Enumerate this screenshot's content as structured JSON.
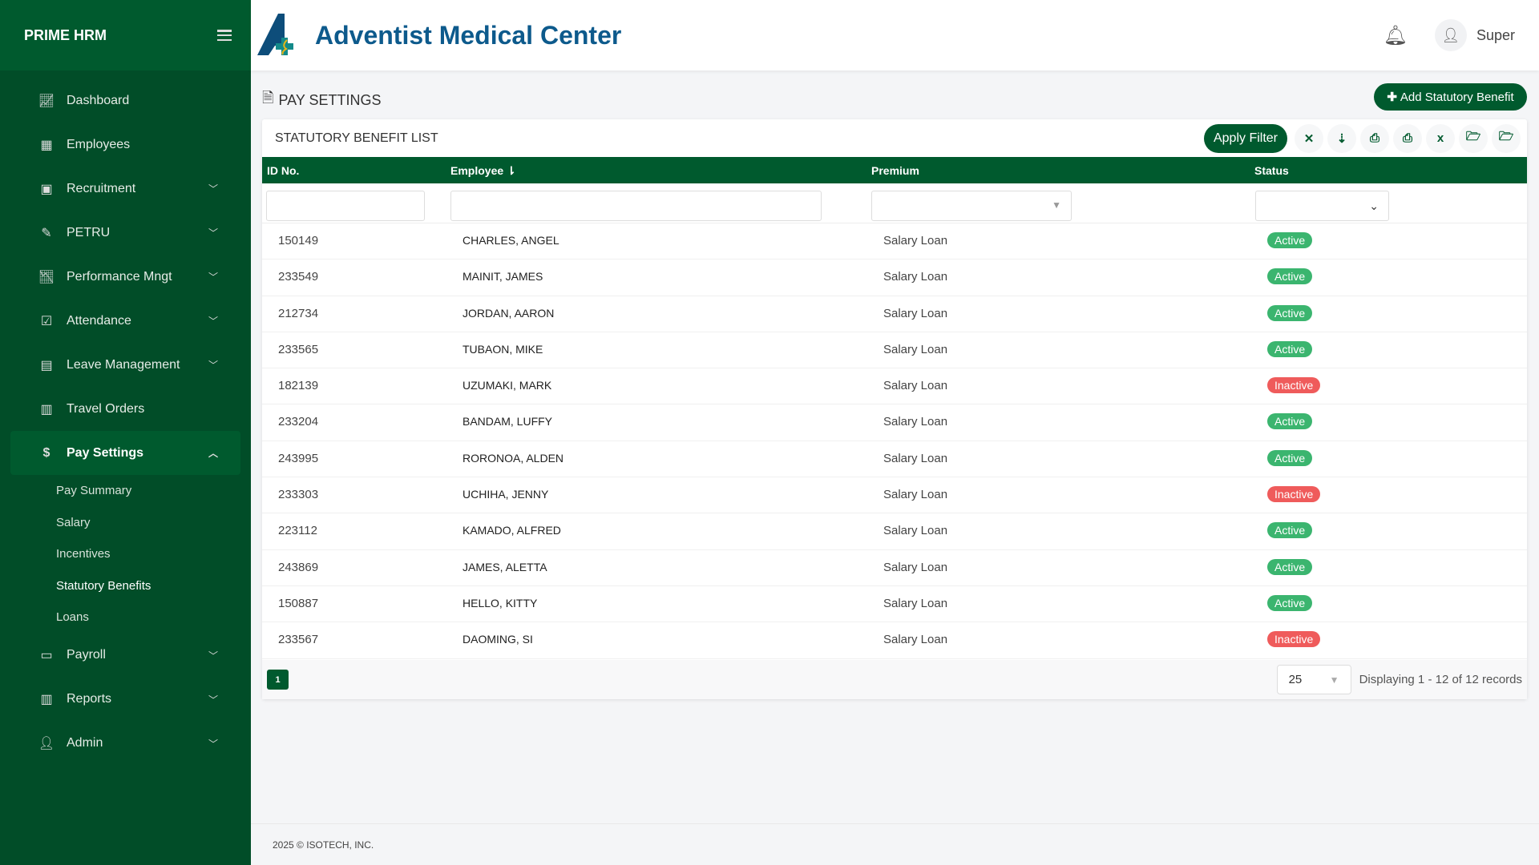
{
  "app": {
    "brand": "PRIME HRM",
    "org_title": "Adventist Medical Center",
    "user": "Super"
  },
  "colors": {
    "primary": "#005a2e",
    "sidebar": "#014d28",
    "active": "#3bb56f",
    "inactive": "#ef5b5b",
    "title": "#0d5a8c"
  },
  "sidebar": {
    "items": [
      {
        "label": "Dashboard",
        "icon": "chart-line-icon"
      },
      {
        "label": "Employees",
        "icon": "users-building-icon"
      },
      {
        "label": "Recruitment",
        "icon": "briefcase-icon",
        "expandable": true
      },
      {
        "label": "PETRU",
        "icon": "file-signature-icon",
        "expandable": true
      },
      {
        "label": "Performance Mngt",
        "icon": "chart-area-icon",
        "expandable": true
      },
      {
        "label": "Attendance",
        "icon": "calendar-check-icon",
        "expandable": true
      },
      {
        "label": "Leave Management",
        "icon": "calendar-icon",
        "expandable": true
      },
      {
        "label": "Travel Orders",
        "icon": "suitcase-icon"
      },
      {
        "label": "Pay Settings",
        "icon": "file-invoice-dollar-icon",
        "expandable": true,
        "open": true
      },
      {
        "label": "Payroll",
        "icon": "wallet-icon",
        "expandable": true
      },
      {
        "label": "Reports",
        "icon": "chart-bar-icon",
        "expandable": true
      },
      {
        "label": "Admin",
        "icon": "user-shield-icon",
        "expandable": true
      }
    ],
    "submenu": [
      "Pay Summary",
      "Salary",
      "Incentives",
      "Statutory Benefits",
      "Loans"
    ]
  },
  "page": {
    "title": "PAY SETTINGS",
    "add_button": "Add Statutory Benefit"
  },
  "card": {
    "title": "STATUTORY BENEFIT LIST",
    "apply_filter": "Apply Filter"
  },
  "table": {
    "columns": [
      "ID No.",
      "Employee",
      "Premium",
      "Status"
    ],
    "sort_indicator": "⇂",
    "rows": [
      {
        "id": "150149",
        "employee": "CHARLES, ANGEL",
        "premium": "Salary Loan",
        "status": "Active"
      },
      {
        "id": "233549",
        "employee": "MAINIT, JAMES",
        "premium": "Salary Loan",
        "status": "Active"
      },
      {
        "id": "212734",
        "employee": "JORDAN, AARON",
        "premium": "Salary Loan",
        "status": "Active"
      },
      {
        "id": "233565",
        "employee": "TUBAON, MIKE",
        "premium": "Salary Loan",
        "status": "Active"
      },
      {
        "id": "182139",
        "employee": "UZUMAKI, MARK",
        "premium": "Salary Loan",
        "status": "Inactive"
      },
      {
        "id": "233204",
        "employee": "BANDAM, LUFFY",
        "premium": "Salary Loan",
        "status": "Active"
      },
      {
        "id": "243995",
        "employee": "RORONOA, ALDEN",
        "premium": "Salary Loan",
        "status": "Active"
      },
      {
        "id": "233303",
        "employee": "UCHIHA, JENNY",
        "premium": "Salary Loan",
        "status": "Inactive"
      },
      {
        "id": "223112",
        "employee": "KAMADO, ALFRED",
        "premium": "Salary Loan",
        "status": "Active"
      },
      {
        "id": "243869",
        "employee": "JAMES, ALETTA",
        "premium": "Salary Loan",
        "status": "Active"
      },
      {
        "id": "150887",
        "employee": "HELLO, KITTY",
        "premium": "Salary Loan",
        "status": "Active"
      },
      {
        "id": "233567",
        "employee": "DAOMING, SI",
        "premium": "Salary Loan",
        "status": "Inactive"
      }
    ]
  },
  "pagination": {
    "current_page": "1",
    "page_size": "25",
    "summary": "Displaying 1 - 12 of 12 records"
  },
  "footer": {
    "text": "2025 © ISOTECH, INC."
  }
}
